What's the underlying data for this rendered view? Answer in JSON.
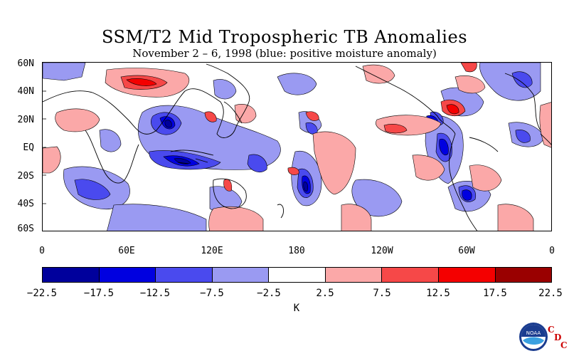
{
  "title": "SSM/T2 Mid Tropospheric TB Anomalies",
  "subtitle": "November 2 – 6, 1998 (blue: positive moisture anomaly)",
  "lat_labels": [
    "60N",
    "40N",
    "20N",
    "EQ",
    "20S",
    "40S",
    "60S"
  ],
  "lon_labels": [
    "0",
    "60E",
    "120E",
    "180",
    "120W",
    "60W",
    "0"
  ],
  "colorbar": {
    "colors": [
      "#00009c",
      "#0000e0",
      "#4a4aee",
      "#9a9af2",
      "#ffffff",
      "#fba8a8",
      "#f64848",
      "#f40000",
      "#9a0000"
    ],
    "tick_labels": [
      "−22.5",
      "−17.5",
      "−12.5",
      "−7.5",
      "−2.5",
      "2.5",
      "7.5",
      "12.5",
      "17.5",
      "22.5"
    ],
    "unit": "K"
  },
  "logo": {
    "icon": "noaa-logo",
    "text": "NOAA",
    "letters": [
      "C",
      "D",
      "C"
    ]
  }
}
